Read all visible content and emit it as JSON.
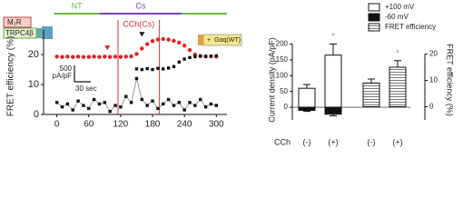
{
  "chart_data": [
    {
      "type": "line",
      "ylabel": "FRET efficiency (%)",
      "x": [
        0,
        10,
        20,
        30,
        40,
        50,
        60,
        70,
        80,
        90,
        100,
        110,
        120,
        130,
        140,
        150,
        160,
        170,
        180,
        190,
        200,
        210,
        220,
        230,
        240,
        250,
        260,
        270,
        280,
        290,
        300
      ],
      "xlim": [
        -25,
        320
      ],
      "xticks": [
        0,
        60,
        120,
        180,
        240,
        300
      ],
      "ylim": [
        0,
        27
      ],
      "yticks": [
        0,
        10,
        20
      ],
      "series": [
        {
          "color": "#e02020",
          "marker": "circle",
          "line": false,
          "values": [
            19.3,
            19.2,
            19.3,
            19.2,
            19.3,
            19.2,
            19.2,
            19.3,
            19.2,
            19.3,
            19.2,
            19.3,
            19.2,
            19.3,
            19.4,
            20.2,
            22,
            23.5,
            24.5,
            25,
            25.2,
            25,
            24.6,
            24,
            23,
            21.5,
            20,
            19.5,
            19.4,
            19.4,
            19.3
          ]
        },
        {
          "color": "#111111",
          "marker": "square",
          "line": false,
          "values": [
            null,
            null,
            null,
            null,
            null,
            null,
            null,
            null,
            null,
            null,
            null,
            null,
            null,
            null,
            null,
            15.2,
            15,
            15.3,
            15,
            15.4,
            15.2,
            15.5,
            16,
            17.5,
            18.5,
            19,
            19.3,
            19.5,
            19.4,
            19.5,
            19.6
          ]
        },
        {
          "color": "#111111",
          "marker": "square",
          "line": true,
          "line_color": "#999999",
          "values": [
            4,
            2.5,
            3.5,
            1.5,
            4.5,
            3,
            2,
            5,
            3.5,
            4,
            1,
            3,
            2.5,
            6,
            4,
            12,
            5,
            3,
            4.5,
            2,
            3.5,
            5,
            3,
            4,
            1.5,
            4,
            3,
            5,
            2.5,
            3.5,
            3
          ]
        }
      ],
      "vlines": [
        115,
        193
      ],
      "vline_color": "#d03030",
      "phases": [
        {
          "label": "NT",
          "start": -5,
          "end": 80,
          "color": "#66bb44"
        },
        {
          "label": "Cs",
          "start": 80,
          "end": 235,
          "color": "#7744bb"
        },
        {
          "start": 235,
          "end": 320,
          "color": "#66bb44"
        }
      ],
      "treatment": {
        "label": "CCh(Cs)",
        "color": "#d03030"
      },
      "triangles": [
        {
          "x": 95,
          "y": 21.5,
          "color": "#e02020"
        },
        {
          "x": 160,
          "y": 26,
          "color": "#111111"
        }
      ],
      "scale_bar": {
        "current": "500",
        "current_unit": "pA/pF",
        "time": "30 sec"
      },
      "constructs": {
        "receptor": "M₃R",
        "channel": "TRPC4β",
        "plus": "+",
        "g_protein": "Gαq(WT)"
      }
    },
    {
      "type": "bar",
      "ylabel": "Current density (pA/pF)",
      "y2label": "FRET efficiency (%)",
      "category_label": "CCh",
      "categories": [
        "(-)",
        "(+)",
        "(-)",
        "(+)"
      ],
      "ylim": [
        -40,
        210
      ],
      "yticks": [
        0,
        50,
        100,
        150,
        200
      ],
      "y2lim": [
        -5,
        25
      ],
      "y2ticks": [
        0,
        10,
        20
      ],
      "series": [
        {
          "name": "+100 mV",
          "color": "#ffffff",
          "values": [
            60,
            165,
            null,
            null
          ],
          "errors": [
            12,
            35,
            null,
            null
          ]
        },
        {
          "name": "-60 mV",
          "color": "#111111",
          "values": [
            -10,
            -22,
            null,
            null
          ],
          "errors": [
            3,
            5,
            null,
            null
          ]
        },
        {
          "name": "FRET efficiency",
          "color": "#ffffff",
          "pattern": "hlines",
          "axis": "y2",
          "values": [
            null,
            null,
            9,
            15
          ],
          "errors": [
            null,
            null,
            1.5,
            2.5
          ]
        }
      ],
      "significance": [
        {
          "category": 1,
          "label": "*"
        },
        {
          "category": 3,
          "label": "*"
        }
      ]
    }
  ]
}
